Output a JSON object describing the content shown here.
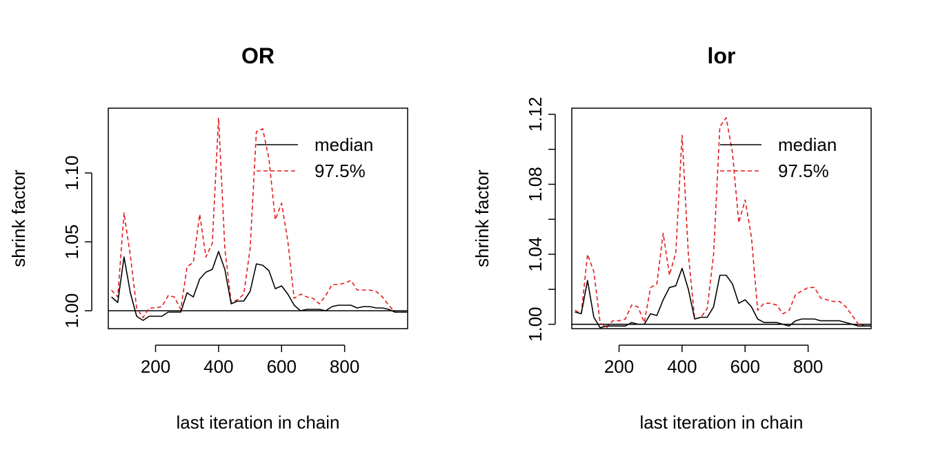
{
  "chart_data": [
    {
      "type": "line",
      "title": "OR",
      "xlabel": "last iteration in chain",
      "ylabel": "shrink factor",
      "xlim": [
        50,
        1000
      ],
      "ylim": [
        0.987,
        1.147
      ],
      "xticks": [
        200,
        400,
        600,
        800
      ],
      "yticks": [
        1.0,
        1.05,
        1.1
      ],
      "ytick_labels": [
        "1.00",
        "1.05",
        "1.10"
      ],
      "reference_line": 1.0,
      "legend": {
        "position": "top-right",
        "entries": [
          "median",
          "97.5%"
        ]
      },
      "colors": {
        "median": "#000000",
        "q975": "#e31a1c"
      },
      "x": [
        60,
        80,
        100,
        120,
        140,
        160,
        180,
        200,
        220,
        240,
        260,
        280,
        300,
        320,
        340,
        360,
        380,
        400,
        420,
        440,
        460,
        480,
        500,
        520,
        540,
        560,
        580,
        600,
        620,
        640,
        660,
        680,
        700,
        720,
        740,
        760,
        780,
        800,
        820,
        840,
        860,
        880,
        900,
        920,
        940,
        960,
        980,
        1000
      ],
      "series": [
        {
          "name": "median",
          "style": "solid",
          "values": [
            1.01,
            1.006,
            1.039,
            1.013,
            0.996,
            0.993,
            0.996,
            0.996,
            0.996,
            0.999,
            0.999,
            0.999,
            1.013,
            1.01,
            1.023,
            1.028,
            1.03,
            1.043,
            1.03,
            1.005,
            1.007,
            1.007,
            1.014,
            1.034,
            1.033,
            1.029,
            1.016,
            1.018,
            1.012,
            1.004,
            1.0,
            1.001,
            1.001,
            1.001,
            1.0,
            1.003,
            1.004,
            1.004,
            1.004,
            1.002,
            1.003,
            1.003,
            1.002,
            1.002,
            1.001,
            0.999,
            0.999,
            0.999
          ]
        },
        {
          "name": "97.5%",
          "style": "dashed",
          "values": [
            1.015,
            1.01,
            1.071,
            1.04,
            1.002,
            0.995,
            1.002,
            1.002,
            1.003,
            1.011,
            1.01,
            1.001,
            1.032,
            1.035,
            1.07,
            1.039,
            1.049,
            1.14,
            1.045,
            1.006,
            1.008,
            1.012,
            1.045,
            1.13,
            1.132,
            1.11,
            1.066,
            1.078,
            1.05,
            1.009,
            1.012,
            1.01,
            1.009,
            1.005,
            1.011,
            1.019,
            1.019,
            1.02,
            1.022,
            1.015,
            1.015,
            1.015,
            1.014,
            1.01,
            1.004,
            0.999,
            0.999,
            0.999
          ]
        }
      ]
    },
    {
      "type": "line",
      "title": "lor",
      "xlabel": "last iteration in chain",
      "ylabel": "shrink factor",
      "xlim": [
        50,
        1000
      ],
      "ylim": [
        0.9975,
        1.1235
      ],
      "xticks": [
        200,
        400,
        600,
        800
      ],
      "yticks": [
        1.0,
        1.02,
        1.04,
        1.06,
        1.08,
        1.1,
        1.12
      ],
      "ytick_labels": [
        "1.00",
        "",
        "1.04",
        "",
        "1.08",
        "",
        "1.12"
      ],
      "reference_line": 1.0,
      "legend": {
        "position": "top-right",
        "entries": [
          "median",
          "97.5%"
        ]
      },
      "colors": {
        "median": "#000000",
        "q975": "#e31a1c"
      },
      "x": [
        60,
        80,
        100,
        120,
        140,
        160,
        180,
        200,
        220,
        240,
        260,
        280,
        300,
        320,
        340,
        360,
        380,
        400,
        420,
        440,
        460,
        480,
        500,
        520,
        540,
        560,
        580,
        600,
        620,
        640,
        660,
        680,
        700,
        720,
        740,
        760,
        780,
        800,
        820,
        840,
        860,
        880,
        900,
        920,
        940,
        960,
        980,
        1000
      ],
      "series": [
        {
          "name": "median",
          "style": "solid",
          "values": [
            1.007,
            1.006,
            1.025,
            1.004,
            0.998,
            0.999,
            0.999,
            0.999,
            0.999,
            1.001,
            1.0,
            1.0,
            1.006,
            1.005,
            1.014,
            1.021,
            1.022,
            1.032,
            1.02,
            1.003,
            1.004,
            1.004,
            1.01,
            1.028,
            1.028,
            1.023,
            1.012,
            1.014,
            1.01,
            1.003,
            1.001,
            1.001,
            1.001,
            1.0,
            0.999,
            1.002,
            1.003,
            1.003,
            1.003,
            1.002,
            1.002,
            1.002,
            1.002,
            1.001,
            1.0,
            0.999,
            0.999,
            0.999
          ]
        },
        {
          "name": "97.5%",
          "style": "dashed",
          "values": [
            1.008,
            1.006,
            1.04,
            1.03,
            1.001,
            0.998,
            1.002,
            1.002,
            1.003,
            1.011,
            1.01,
            1.001,
            1.021,
            1.023,
            1.052,
            1.028,
            1.041,
            1.108,
            1.04,
            1.003,
            1.004,
            1.009,
            1.04,
            1.113,
            1.118,
            1.098,
            1.058,
            1.071,
            1.05,
            1.008,
            1.012,
            1.012,
            1.011,
            1.006,
            1.008,
            1.017,
            1.019,
            1.021,
            1.021,
            1.015,
            1.014,
            1.013,
            1.013,
            1.01,
            1.005,
            1.0,
            0.999,
            0.999
          ]
        }
      ]
    }
  ]
}
